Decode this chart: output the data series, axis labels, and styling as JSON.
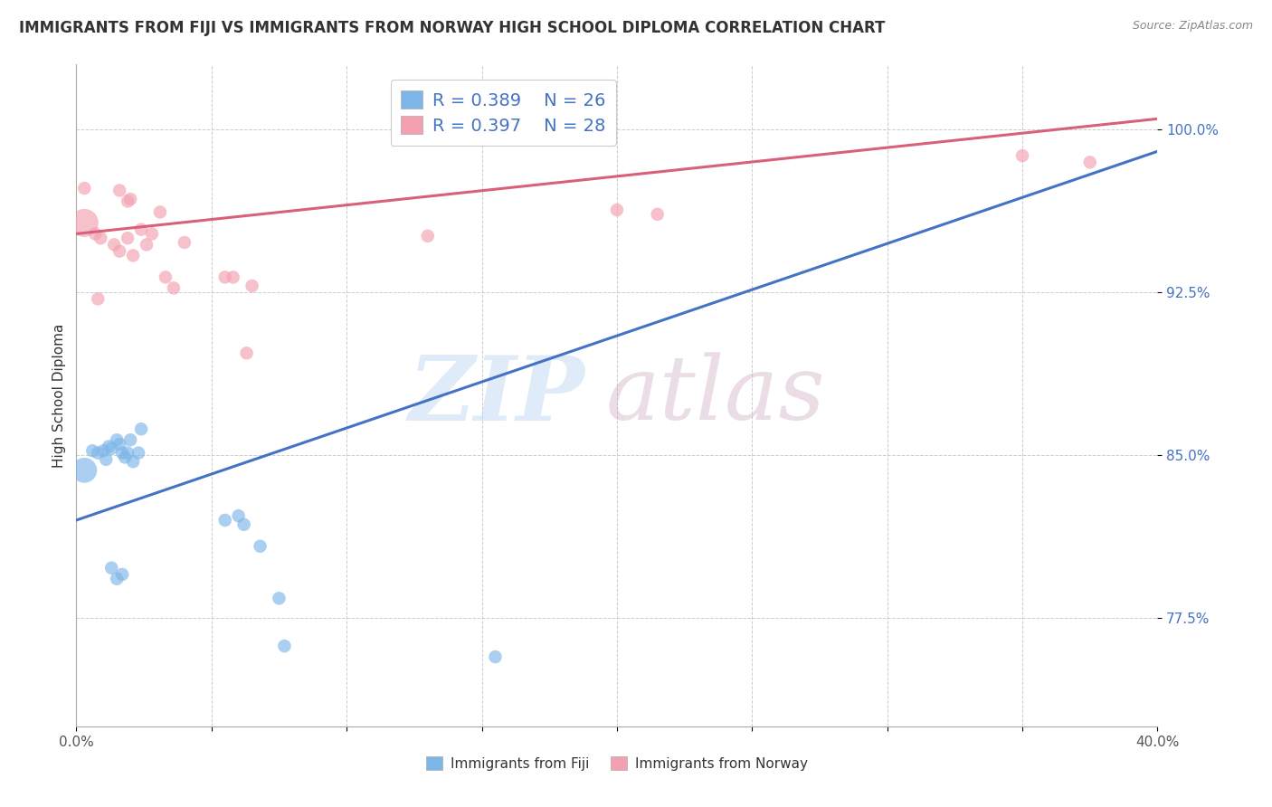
{
  "title": "IMMIGRANTS FROM FIJI VS IMMIGRANTS FROM NORWAY HIGH SCHOOL DIPLOMA CORRELATION CHART",
  "source": "Source: ZipAtlas.com",
  "ylabel": "High School Diploma",
  "xlim": [
    0.0,
    0.4
  ],
  "ylim": [
    0.725,
    1.03
  ],
  "fiji_color": "#7eb6e8",
  "norway_color": "#f4a0b0",
  "fiji_line_color": "#4472c4",
  "norway_line_color": "#d9607a",
  "legend_R_fiji": "R = 0.389",
  "legend_N_fiji": "N = 26",
  "legend_R_norway": "R = 0.397",
  "legend_N_norway": "N = 28",
  "fiji_x": [
    0.003,
    0.02,
    0.024,
    0.01,
    0.012,
    0.015,
    0.017,
    0.006,
    0.008,
    0.011,
    0.013,
    0.016,
    0.018,
    0.019,
    0.021,
    0.023,
    0.013,
    0.015,
    0.017,
    0.055,
    0.06,
    0.062,
    0.068,
    0.075,
    0.077,
    0.155
  ],
  "fiji_y": [
    0.843,
    0.857,
    0.862,
    0.852,
    0.854,
    0.857,
    0.851,
    0.852,
    0.851,
    0.848,
    0.853,
    0.855,
    0.849,
    0.851,
    0.847,
    0.851,
    0.798,
    0.793,
    0.795,
    0.82,
    0.822,
    0.818,
    0.808,
    0.784,
    0.762,
    0.757
  ],
  "norway_x": [
    0.003,
    0.007,
    0.009,
    0.014,
    0.016,
    0.019,
    0.021,
    0.024,
    0.026,
    0.028,
    0.031,
    0.033,
    0.036,
    0.016,
    0.019,
    0.058,
    0.063,
    0.13,
    0.35,
    0.375,
    0.003,
    0.008,
    0.02,
    0.04,
    0.055,
    0.065,
    0.2,
    0.215
  ],
  "norway_y": [
    0.957,
    0.952,
    0.95,
    0.947,
    0.944,
    0.95,
    0.942,
    0.954,
    0.947,
    0.952,
    0.962,
    0.932,
    0.927,
    0.972,
    0.967,
    0.932,
    0.897,
    0.951,
    0.988,
    0.985,
    0.973,
    0.922,
    0.968,
    0.948,
    0.932,
    0.928,
    0.963,
    0.961
  ],
  "fiji_line_x0": 0.0,
  "fiji_line_y0": 0.82,
  "fiji_line_x1": 0.4,
  "fiji_line_y1": 0.99,
  "norway_line_x0": 0.0,
  "norway_line_y0": 0.952,
  "norway_line_x1": 0.4,
  "norway_line_y1": 1.005,
  "ytick_positions": [
    0.775,
    0.85,
    0.925,
    1.0
  ],
  "ytick_labels": [
    "77.5%",
    "85.0%",
    "92.5%",
    "100.0%"
  ],
  "xtick_positions": [
    0.0,
    0.05,
    0.1,
    0.15,
    0.2,
    0.25,
    0.3,
    0.35,
    0.4
  ],
  "xtick_labels": [
    "0.0%",
    "",
    "",
    "",
    "",
    "",
    "",
    "",
    "40.0%"
  ],
  "watermark_zip": "ZIP",
  "watermark_atlas": "atlas",
  "background_color": "#ffffff",
  "grid_color": "#cccccc",
  "title_fontsize": 12,
  "axis_label_fontsize": 11,
  "tick_fontsize": 11,
  "legend_fontsize": 14,
  "legend_text_color": "#4472c4",
  "ytick_color": "#4472c4",
  "source_color": "#888888"
}
